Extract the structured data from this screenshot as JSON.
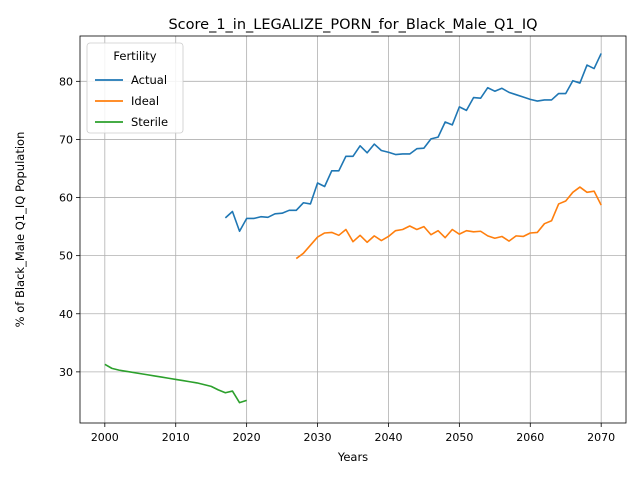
{
  "chart_data": {
    "type": "line",
    "title": "Score_1_in_LEGALIZE_PORN_for_Black_Male_Q1_IQ",
    "xlabel": "Years",
    "ylabel": "% of Black_Male Q1_IQ Population",
    "xlim": [
      1996.5,
      2073.5
    ],
    "ylim": [
      21.2,
      87.8
    ],
    "xticks": [
      2000,
      2010,
      2020,
      2030,
      2040,
      2050,
      2060,
      2070
    ],
    "yticks": [
      30,
      40,
      50,
      60,
      70,
      80
    ],
    "grid": true,
    "legend": {
      "title": "Fertility",
      "placement": "upper-left"
    },
    "series": [
      {
        "name": "Actual",
        "color": "#1f77b4",
        "x": [
          2017,
          2018,
          2019,
          2020,
          2021,
          2022,
          2023,
          2024,
          2025,
          2026,
          2027,
          2028,
          2029,
          2030,
          2031,
          2032,
          2033,
          2034,
          2035,
          2036,
          2037,
          2038,
          2039,
          2040,
          2041,
          2042,
          2043,
          2044,
          2045,
          2046,
          2047,
          2048,
          2049,
          2050,
          2051,
          2052,
          2053,
          2054,
          2055,
          2056,
          2057,
          2058,
          2059,
          2060,
          2061,
          2062,
          2063,
          2064,
          2065,
          2066,
          2067,
          2068,
          2069,
          2070
        ],
        "y": [
          56.5,
          57.6,
          54.2,
          56.4,
          56.4,
          56.7,
          56.6,
          57.2,
          57.3,
          57.8,
          57.8,
          59.1,
          58.9,
          62.5,
          61.9,
          64.6,
          64.6,
          67.1,
          67.1,
          68.9,
          67.7,
          69.2,
          68.1,
          67.8,
          67.4,
          67.5,
          67.5,
          68.4,
          68.5,
          70.1,
          70.4,
          73.0,
          72.5,
          75.6,
          75.0,
          77.2,
          77.1,
          78.9,
          78.3,
          78.8,
          78.1,
          77.7,
          77.3,
          76.9,
          76.6,
          76.8,
          76.8,
          77.9,
          77.9,
          80.1,
          79.7,
          82.8,
          82.2,
          84.8
        ]
      },
      {
        "name": "Ideal",
        "color": "#ff7f0e",
        "x": [
          2027,
          2028,
          2029,
          2030,
          2031,
          2032,
          2033,
          2034,
          2035,
          2036,
          2037,
          2038,
          2039,
          2040,
          2041,
          2042,
          2043,
          2044,
          2045,
          2046,
          2047,
          2048,
          2049,
          2050,
          2051,
          2052,
          2053,
          2054,
          2055,
          2056,
          2057,
          2058,
          2059,
          2060,
          2061,
          2062,
          2063,
          2064,
          2065,
          2066,
          2067,
          2068,
          2069,
          2070
        ],
        "y": [
          49.5,
          50.4,
          51.8,
          53.2,
          53.9,
          54.0,
          53.5,
          54.5,
          52.4,
          53.5,
          52.3,
          53.4,
          52.6,
          53.3,
          54.3,
          54.5,
          55.1,
          54.5,
          55.0,
          53.6,
          54.3,
          53.1,
          54.5,
          53.7,
          54.3,
          54.1,
          54.2,
          53.4,
          53.0,
          53.3,
          52.5,
          53.4,
          53.3,
          53.9,
          54.0,
          55.5,
          56.0,
          58.9,
          59.4,
          60.9,
          61.8,
          60.9,
          61.1,
          58.7
        ]
      },
      {
        "name": "Sterile",
        "color": "#2ca02c",
        "x": [
          2000,
          2001,
          2002,
          2003,
          2004,
          2005,
          2006,
          2007,
          2008,
          2009,
          2010,
          2011,
          2012,
          2013,
          2014,
          2015,
          2016,
          2017,
          2018,
          2019,
          2020
        ],
        "y": [
          31.3,
          30.6,
          30.3,
          30.1,
          29.9,
          29.7,
          29.5,
          29.3,
          29.1,
          28.9,
          28.7,
          28.5,
          28.3,
          28.1,
          27.8,
          27.5,
          26.9,
          26.4,
          26.7,
          24.7,
          25.1
        ]
      }
    ]
  }
}
